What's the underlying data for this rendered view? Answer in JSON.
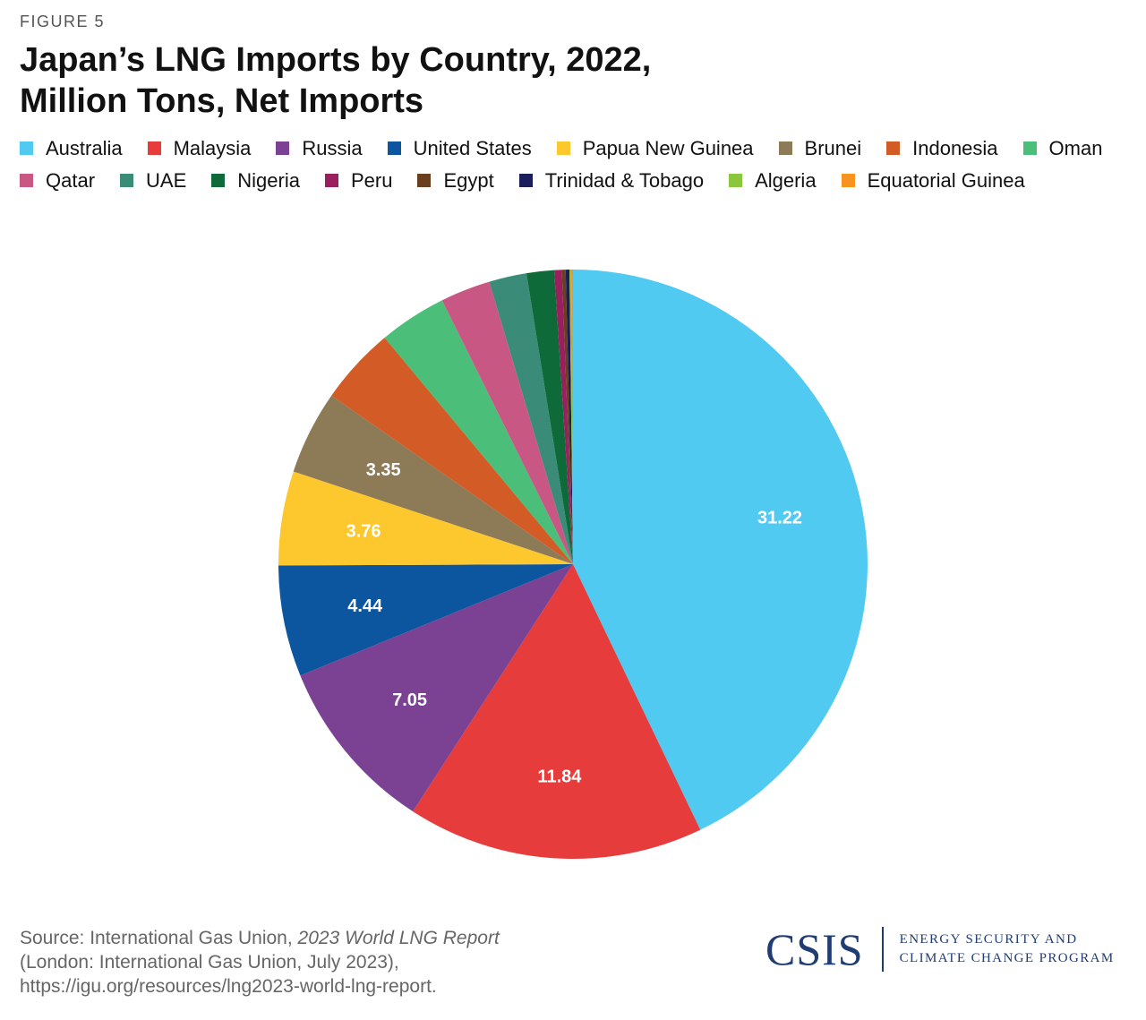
{
  "figure_label": "FIGURE 5",
  "title_lines": [
    "Japan’s LNG Imports by Country, 2022,",
    "Million Tons, Net Imports"
  ],
  "chart_data": {
    "type": "pie",
    "title": "Japan’s LNG Imports by Country, 2022, Million Tons, Net Imports",
    "unit": "Million Tons",
    "start": "12 o'clock",
    "direction": "clockwise",
    "legend_position": "top",
    "slices": [
      {
        "label": "Australia",
        "value": 31.22,
        "color": "#51caf1",
        "label_shown": "31.22"
      },
      {
        "label": "Malaysia",
        "value": 11.84,
        "color": "#e63c3b",
        "label_shown": "11.84"
      },
      {
        "label": "Russia",
        "value": 7.05,
        "color": "#7b4294",
        "label_shown": "7.05"
      },
      {
        "label": "United States",
        "value": 4.44,
        "color": "#0c56a0",
        "label_shown": "4.44"
      },
      {
        "label": "Papua New Guinea",
        "value": 3.76,
        "color": "#fdc72e",
        "label_shown": "3.76"
      },
      {
        "label": "Brunei",
        "value": 3.35,
        "color": "#8d7b57",
        "label_shown": "3.35"
      },
      {
        "label": "Indonesia",
        "value": 3.1,
        "color": "#d35b25",
        "label_shown": ""
      },
      {
        "label": "Oman",
        "value": 2.7,
        "color": "#4bbe7a",
        "label_shown": ""
      },
      {
        "label": "Qatar",
        "value": 2.0,
        "color": "#c85883",
        "label_shown": ""
      },
      {
        "label": "UAE",
        "value": 1.5,
        "color": "#3a8b78",
        "label_shown": ""
      },
      {
        "label": "Nigeria",
        "value": 1.1,
        "color": "#0e6a38",
        "label_shown": ""
      },
      {
        "label": "Peru",
        "value": 0.3,
        "color": "#9a1f5f",
        "label_shown": ""
      },
      {
        "label": "Egypt",
        "value": 0.15,
        "color": "#6a3f1d",
        "label_shown": ""
      },
      {
        "label": "Trinidad & Tobago",
        "value": 0.15,
        "color": "#1a1f5c",
        "label_shown": ""
      },
      {
        "label": "Algeria",
        "value": 0.07,
        "color": "#8cc63e",
        "label_shown": ""
      },
      {
        "label": "Equatorial Guinea",
        "value": 0.07,
        "color": "#f7931e",
        "label_shown": ""
      }
    ]
  },
  "source": {
    "prefix": "Source: International Gas Union, ",
    "report_title": "2023 World LNG Report",
    "line2": "(London: International Gas Union, July 2023),",
    "line3": "https://igu.org/resources/lng2023-world-lng-report."
  },
  "logo": {
    "mark": "CSIS",
    "program_line1": "ENERGY SECURITY AND",
    "program_line2": "CLIMATE CHANGE PROGRAM"
  }
}
